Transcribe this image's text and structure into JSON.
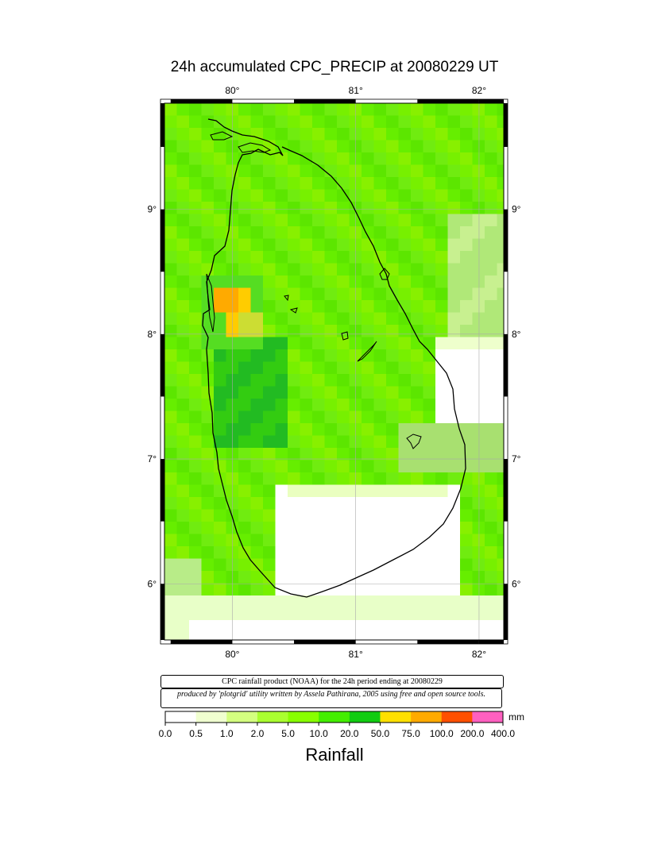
{
  "title": "24h accumulated CPC_PRECIP  at 20080229 UT",
  "map": {
    "lon_labels": [
      "80°",
      "81°",
      "82°"
    ],
    "lat_labels": [
      "9°",
      "8°",
      "7°",
      "6°"
    ],
    "lon_values": [
      80,
      81,
      82
    ],
    "lat_values": [
      9,
      8,
      7,
      6
    ],
    "lon_range": [
      79.45,
      82.2
    ],
    "lat_range": [
      5.55,
      9.85
    ]
  },
  "notes": {
    "line1": "CPC rainfall product (NOAA) for the 24h period ending at 20080229",
    "line2": "produced by 'plotgrid' utility written by Assela Pathirana, 2005 using free and open source tools."
  },
  "legend": {
    "unit": "mm",
    "title": "Rainfall",
    "ticks": [
      "0.0",
      "0.5",
      "1.0",
      "2.0",
      "5.0",
      "10.0",
      "20.0",
      "50.0",
      "75.0",
      "100.0",
      "200.0",
      "400.0"
    ],
    "colors": [
      "#ffffff",
      "#f0ffd0",
      "#d4ff80",
      "#aaff30",
      "#88ff00",
      "#44ee00",
      "#11cc11",
      "#ffe000",
      "#ffaa00",
      "#ff5000",
      "#ff60c0"
    ]
  }
}
